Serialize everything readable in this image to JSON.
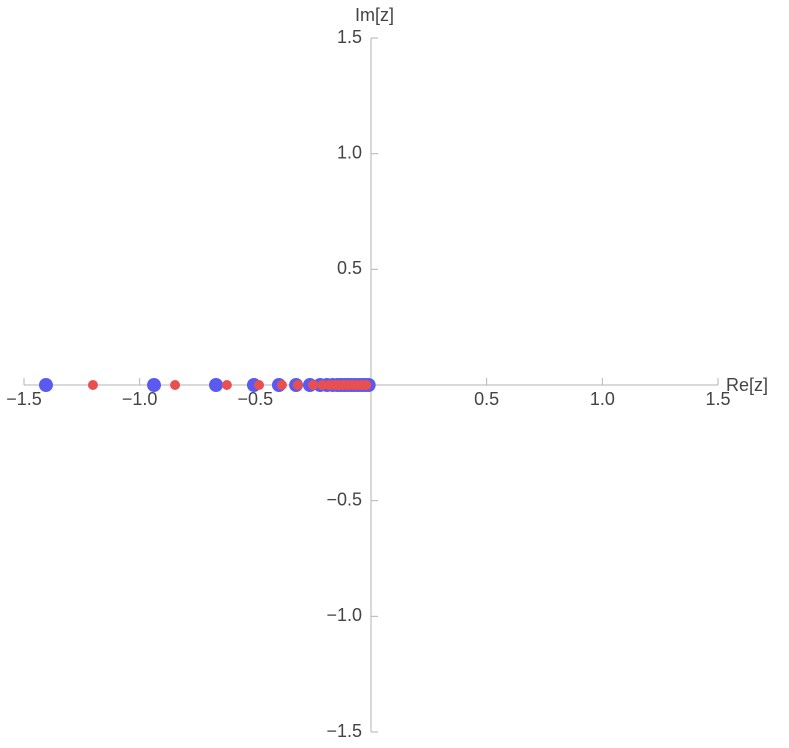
{
  "chart_data": {
    "type": "scatter",
    "x_label": "Re[z]",
    "y_label": "Im[z]",
    "xlim": [
      -1.5,
      1.5
    ],
    "ylim": [
      -1.5,
      1.5
    ],
    "xticks": [
      {
        "value": -1.5,
        "label": "−1.5"
      },
      {
        "value": -1.0,
        "label": "−1.0"
      },
      {
        "value": -0.5,
        "label": "−0.5"
      },
      0.5,
      {
        "value": 1.0,
        "label": "1.0"
      },
      1.5
    ],
    "yticks": [
      {
        "value": -1.5,
        "label": "−1.5"
      },
      {
        "value": -1.0,
        "label": "−1.0"
      },
      {
        "value": -0.5,
        "label": "−0.5"
      },
      0.5,
      {
        "value": 1.0,
        "label": "1.0"
      },
      1.5
    ],
    "series": [
      {
        "color": "#5a5af0",
        "x": [
          -1.405,
          -0.938,
          -0.67,
          -0.506,
          -0.398,
          -0.324,
          -0.264,
          -0.22,
          -0.19,
          -0.165,
          -0.145,
          -0.13,
          -0.115,
          -0.1,
          -0.085,
          -0.07,
          -0.055,
          -0.04,
          -0.025,
          -0.01
        ],
        "values": [
          0,
          0,
          0,
          0,
          0,
          0,
          0,
          0,
          0,
          0,
          0,
          0,
          0,
          0,
          0,
          0,
          0,
          0,
          0,
          0
        ]
      },
      {
        "color": "#e85050",
        "x": [
          -1.202,
          -0.847,
          -0.623,
          -0.484,
          -0.385,
          -0.316,
          -0.25,
          -0.21,
          -0.18,
          -0.16,
          -0.14,
          -0.12,
          -0.1,
          -0.08,
          -0.06,
          -0.04,
          -0.02
        ],
        "values": [
          0,
          0,
          0,
          0,
          0,
          0,
          0,
          0,
          0,
          0,
          0,
          0,
          0,
          0,
          0,
          0,
          0
        ]
      }
    ]
  }
}
